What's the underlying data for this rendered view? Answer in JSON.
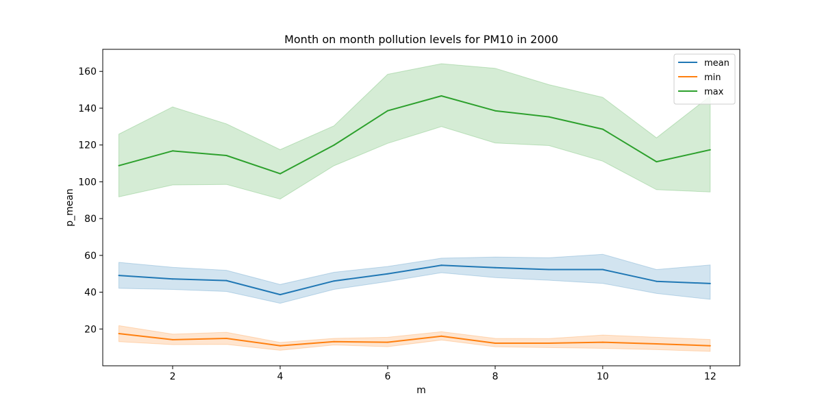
{
  "chart_data": {
    "type": "line",
    "title": "Month on month pollution levels for PM10 in 2000",
    "xlabel": "m",
    "ylabel": "p_mean",
    "x": [
      1,
      2,
      3,
      4,
      5,
      6,
      7,
      8,
      9,
      10,
      11,
      12
    ],
    "xlim": [
      0.7,
      12.55
    ],
    "ylim": [
      0,
      172
    ],
    "xticks": [
      2,
      4,
      6,
      8,
      10,
      12
    ],
    "yticks": [
      20,
      40,
      60,
      80,
      100,
      120,
      140,
      160
    ],
    "grid": false,
    "legend_position": "top-right",
    "series": [
      {
        "name": "mean",
        "color": "#1f77b4",
        "values": [
          49.1,
          47.2,
          46.3,
          38.7,
          46.1,
          50.0,
          54.6,
          53.3,
          52.3,
          52.3,
          45.9,
          44.7
        ],
        "ci_lower": [
          42.1,
          41.5,
          40.4,
          34.0,
          41.5,
          45.8,
          50.6,
          47.9,
          46.5,
          44.8,
          39.3,
          36.1
        ],
        "ci_upper": [
          56.2,
          53.5,
          51.9,
          44.2,
          50.8,
          54.0,
          58.5,
          59.1,
          58.7,
          60.6,
          52.3,
          54.8
        ]
      },
      {
        "name": "min",
        "color": "#ff7f0e",
        "values": [
          17.5,
          14.2,
          14.9,
          10.9,
          13.1,
          12.8,
          16.1,
          12.3,
          12.3,
          12.8,
          11.9,
          10.9
        ],
        "ci_lower": [
          13.1,
          11.5,
          11.6,
          8.4,
          11.3,
          10.4,
          14.0,
          10.3,
          9.9,
          9.5,
          8.8,
          7.8
        ],
        "ci_upper": [
          21.8,
          17.2,
          18.2,
          12.7,
          14.9,
          15.5,
          18.5,
          14.9,
          14.8,
          16.7,
          15.5,
          14.3
        ]
      },
      {
        "name": "max",
        "color": "#2ca02c",
        "values": [
          108.8,
          116.8,
          114.3,
          104.4,
          119.9,
          138.6,
          146.7,
          138.6,
          135.3,
          128.6,
          110.9,
          117.4
        ],
        "ci_lower": [
          91.8,
          98.3,
          98.6,
          90.6,
          108.7,
          120.9,
          130.0,
          121.1,
          119.7,
          111.2,
          95.7,
          94.5
        ],
        "ci_upper": [
          125.9,
          140.7,
          131.5,
          117.5,
          130.4,
          158.4,
          164.2,
          161.7,
          152.8,
          145.9,
          123.9,
          146.6
        ]
      }
    ]
  }
}
